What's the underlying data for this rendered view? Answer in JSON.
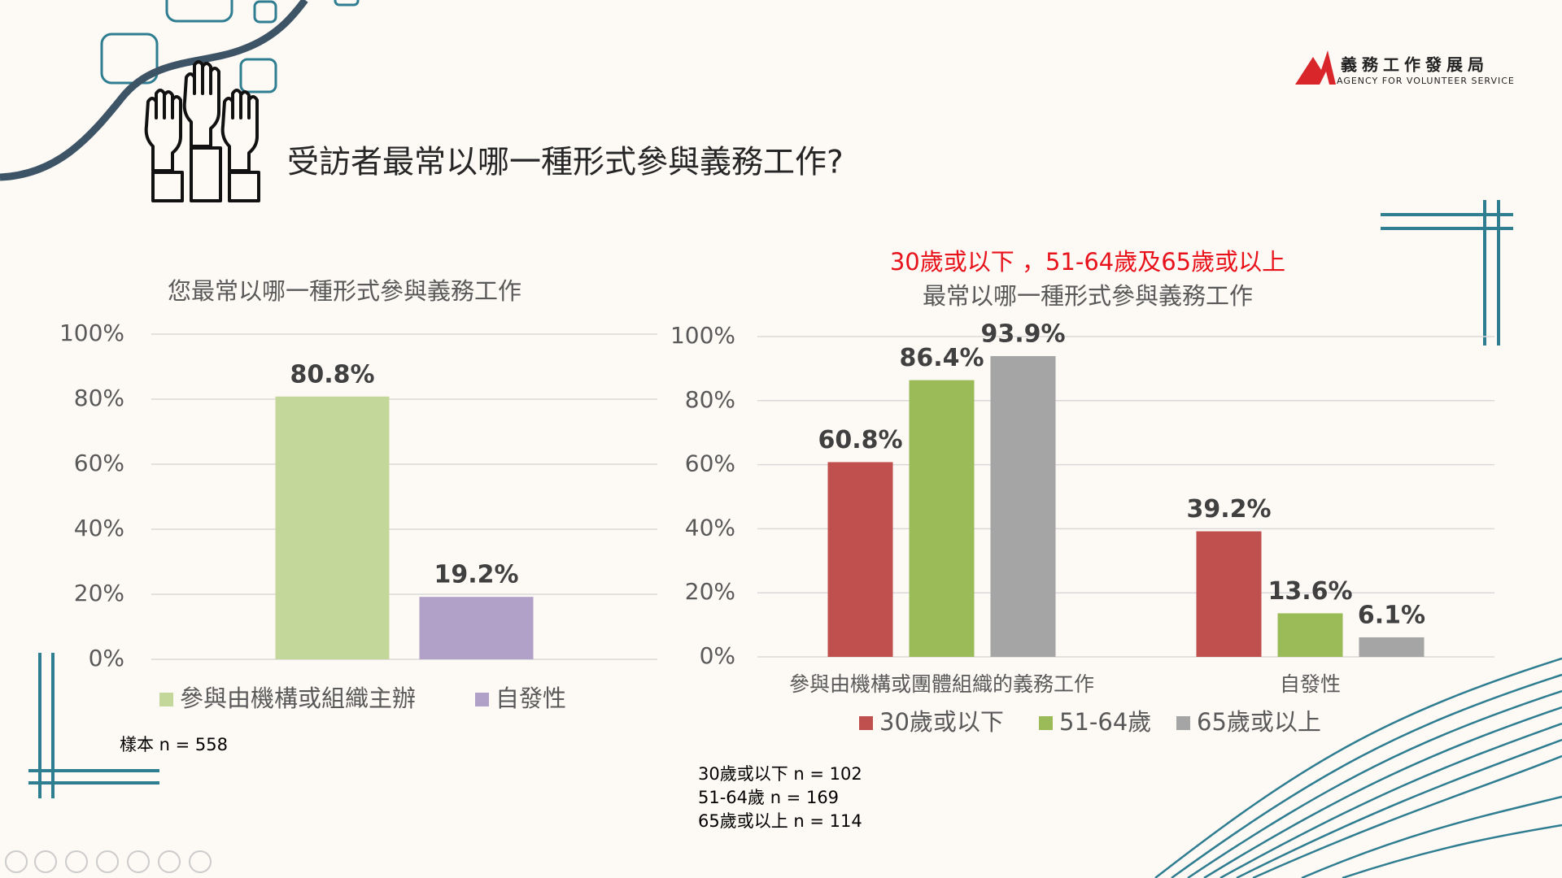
{
  "slide_title": "受訪者最常以哪一種形式參與義務工作?",
  "logo": {
    "name": "義務工作發展局",
    "english": "AGENCY FOR VOLUNTEER SERVICE"
  },
  "chart_data": [
    {
      "type": "bar",
      "title": "您最常以哪一種形式參與義務工作",
      "categories": [
        null
      ],
      "series": [
        {
          "name": "參與由機構或組織主辦",
          "color": "#c4d79b",
          "values": [
            80.8
          ],
          "value_labels": [
            "80.8%"
          ]
        },
        {
          "name": "自發性",
          "color": "#b1a0c7",
          "values": [
            19.2
          ],
          "value_labels": [
            "19.2%"
          ]
        }
      ],
      "ylim": [
        0,
        100
      ],
      "yticks": [
        {
          "value": 0,
          "label": "0%"
        },
        {
          "value": 20,
          "label": "20%"
        },
        {
          "value": 40,
          "label": "40%"
        },
        {
          "value": 60,
          "label": "60%"
        },
        {
          "value": 80,
          "label": "80%"
        },
        {
          "value": 100,
          "label": "100%"
        }
      ],
      "grid": true,
      "legend": "bottom",
      "notes": [
        "樣本 n = 558"
      ]
    },
    {
      "type": "bar",
      "subtitle": "30歲或以下 ，51-64歲及65歲或以上",
      "title": "最常以哪一種形式參與義務工作",
      "categories": [
        "參與由機構或團體組織的義務工作",
        "自發性"
      ],
      "series": [
        {
          "name": "30歲或以下",
          "color": "#c0504d",
          "values": [
            60.8,
            39.2
          ],
          "value_labels": [
            "60.8%",
            "39.2%"
          ]
        },
        {
          "name": "51-64歲",
          "color": "#9bbb59",
          "values": [
            86.4,
            13.6
          ],
          "value_labels": [
            "86.4%",
            "13.6%"
          ]
        },
        {
          "name": "65歲或以上",
          "color": "#a5a5a5",
          "values": [
            93.9,
            6.1
          ],
          "value_labels": [
            "93.9%",
            "6.1%"
          ]
        }
      ],
      "ylim": [
        0,
        100
      ],
      "yticks": [
        {
          "value": 0,
          "label": "0%"
        },
        {
          "value": 20,
          "label": "20%"
        },
        {
          "value": 40,
          "label": "40%"
        },
        {
          "value": 60,
          "label": "60%"
        },
        {
          "value": 80,
          "label": "80%"
        },
        {
          "value": 100,
          "label": "100%"
        }
      ],
      "grid": true,
      "legend": "bottom",
      "notes": [
        "30歲或以下 n = 102",
        "51-64歲 n = 169",
        "65歲或以上  n = 114"
      ]
    }
  ]
}
